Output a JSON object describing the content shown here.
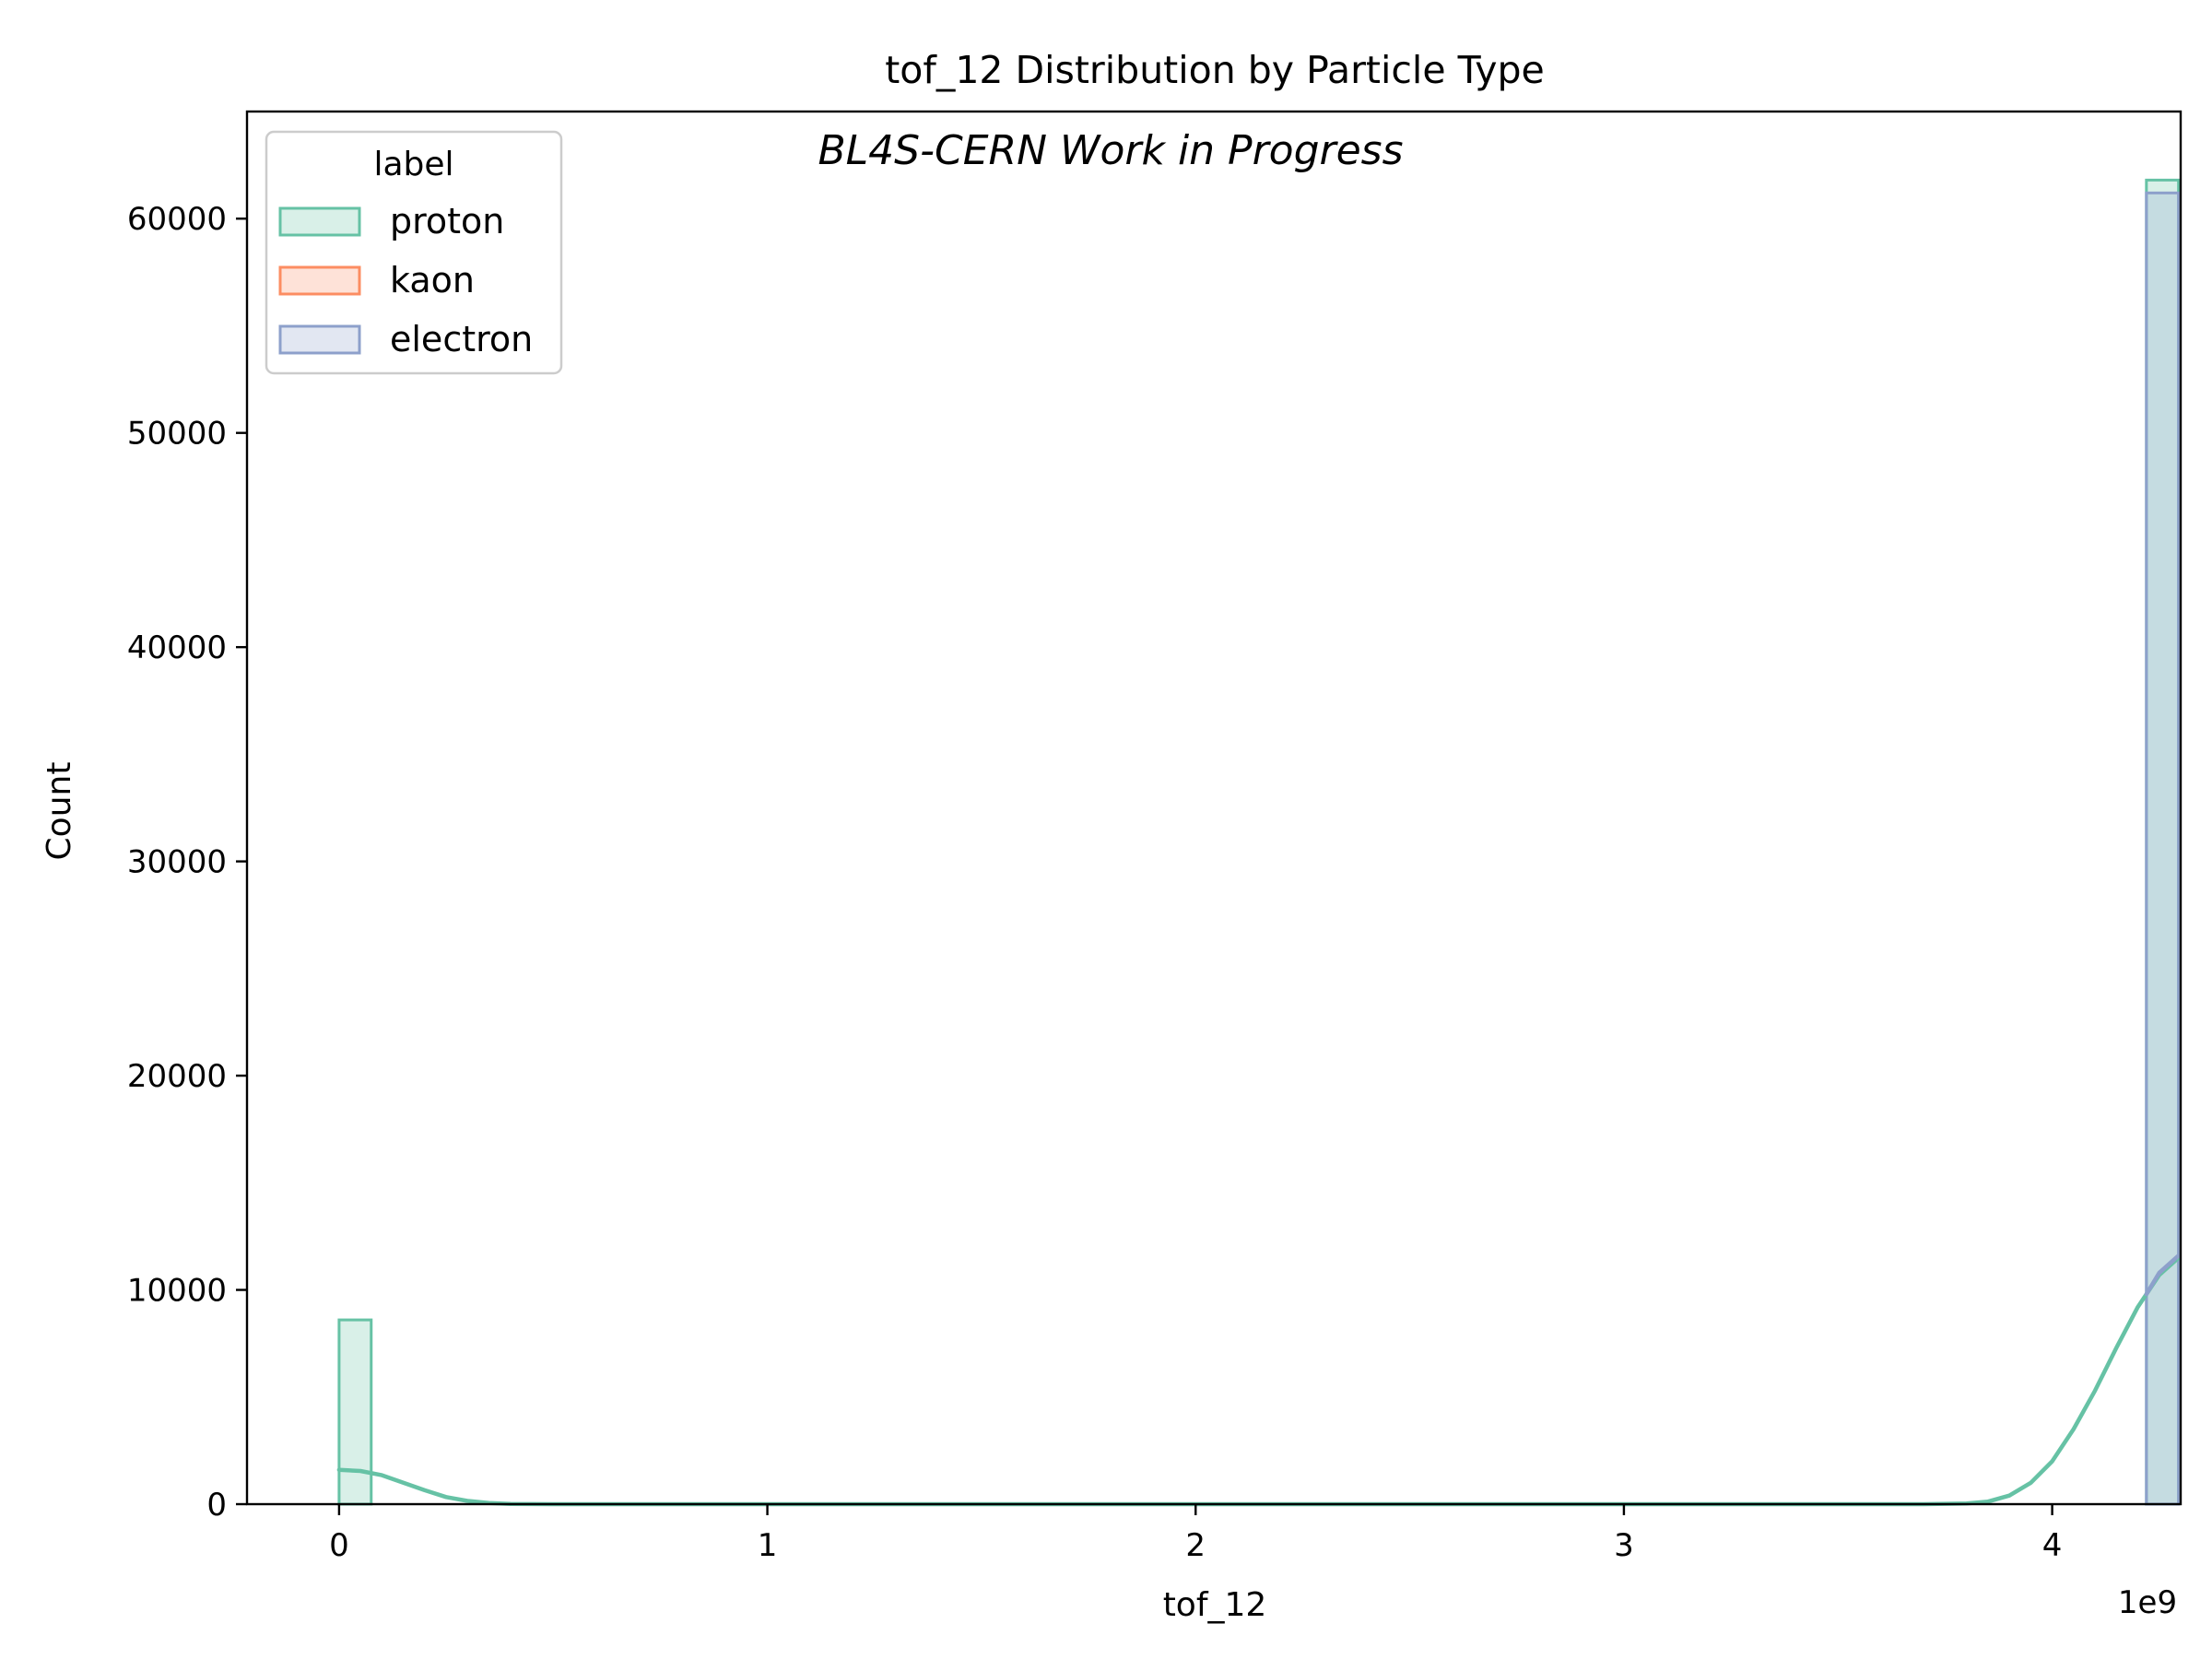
{
  "chart_data": {
    "type": "bar",
    "title": "tof_12 Distribution by Particle Type",
    "annotation": "BL4S-CERN Work in Progress",
    "xlabel": "tof_12",
    "ylabel": "Count",
    "x_offset_label": "1e9",
    "xlim": [
      -0.215,
      4.3
    ],
    "ylim": [
      0,
      65000
    ],
    "x_ticks": [
      0,
      1,
      2,
      3,
      4
    ],
    "x_tick_labels": [
      "0",
      "1",
      "2",
      "3",
      "4"
    ],
    "y_ticks": [
      0,
      10000,
      20000,
      30000,
      40000,
      50000,
      60000
    ],
    "y_tick_labels": [
      "0",
      "10000",
      "20000",
      "30000",
      "40000",
      "50000",
      "60000"
    ],
    "legend": {
      "title": "label",
      "position": "upper-left",
      "entries": [
        "proton",
        "kaon",
        "electron"
      ]
    },
    "series": [
      {
        "name": "proton",
        "color": "#66c2a5",
        "bins": [
          {
            "x0": 0.0,
            "x1": 0.075,
            "value": 8600
          },
          {
            "x0": 4.22,
            "x1": 4.295,
            "value": 61800
          }
        ],
        "kde": [
          [
            0.0,
            1600
          ],
          [
            0.05,
            1550
          ],
          [
            0.1,
            1350
          ],
          [
            0.15,
            1000
          ],
          [
            0.2,
            650
          ],
          [
            0.25,
            330
          ],
          [
            0.3,
            150
          ],
          [
            0.35,
            50
          ],
          [
            0.4,
            10
          ],
          [
            0.5,
            0
          ],
          [
            1.0,
            0
          ],
          [
            2.0,
            0
          ],
          [
            3.0,
            0
          ],
          [
            3.7,
            0
          ],
          [
            3.8,
            30
          ],
          [
            3.85,
            120
          ],
          [
            3.9,
            400
          ],
          [
            3.95,
            1000
          ],
          [
            4.0,
            2000
          ],
          [
            4.05,
            3500
          ],
          [
            4.1,
            5300
          ],
          [
            4.15,
            7300
          ],
          [
            4.2,
            9200
          ],
          [
            4.25,
            10700
          ],
          [
            4.295,
            11500
          ]
        ]
      },
      {
        "name": "kaon",
        "color": "#fc8d62",
        "bins": [],
        "kde": []
      },
      {
        "name": "electron",
        "color": "#8da0cb",
        "bins": [
          {
            "x0": 4.22,
            "x1": 4.295,
            "value": 61200
          }
        ],
        "kde": [
          [
            4.22,
            9800
          ],
          [
            4.25,
            10800
          ],
          [
            4.295,
            11600
          ]
        ]
      }
    ],
    "grid": false
  }
}
